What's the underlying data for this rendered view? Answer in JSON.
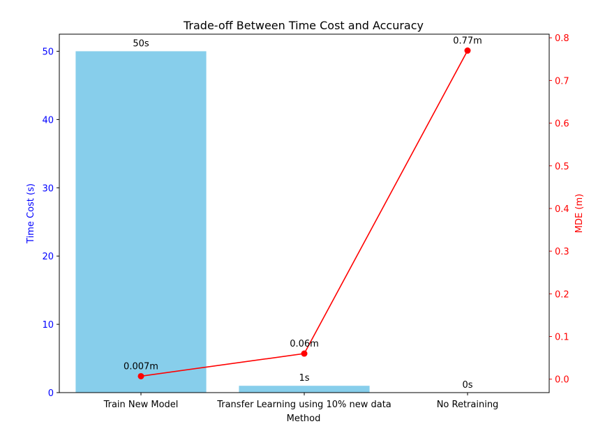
{
  "chart_data": {
    "type": "bar",
    "title": "Trade-off Between Time Cost and Accuracy",
    "xlabel": "Method",
    "ylabel": "Time Cost (s)",
    "ylabel_right": "MDE (m)",
    "categories": [
      "Train New Model",
      "Transfer Learning using 10% new data",
      "No Retraining"
    ],
    "series": [
      {
        "name": "Time Cost (s)",
        "type": "bar",
        "axis": "left",
        "values": [
          50,
          1,
          0
        ],
        "labels": [
          "50s",
          "1s",
          "0s"
        ],
        "color": "#87ceeb"
      },
      {
        "name": "MDE (m)",
        "type": "line",
        "axis": "right",
        "values": [
          0.007,
          0.06,
          0.77
        ],
        "labels": [
          "0.007m",
          "0.06m",
          "0.77m"
        ],
        "color": "#ff0000"
      }
    ],
    "ylim": [
      0,
      52.5
    ],
    "ylim_right": [
      -0.0315,
      0.8085
    ],
    "yticks": [
      "0",
      "10",
      "20",
      "30",
      "40",
      "50"
    ],
    "yticks_right": [
      "0.0",
      "0.1",
      "0.2",
      "0.3",
      "0.4",
      "0.5",
      "0.6",
      "0.7",
      "0.8"
    ],
    "left_axis_color": "#0000ff",
    "right_axis_color": "#ff0000",
    "grid": false
  }
}
